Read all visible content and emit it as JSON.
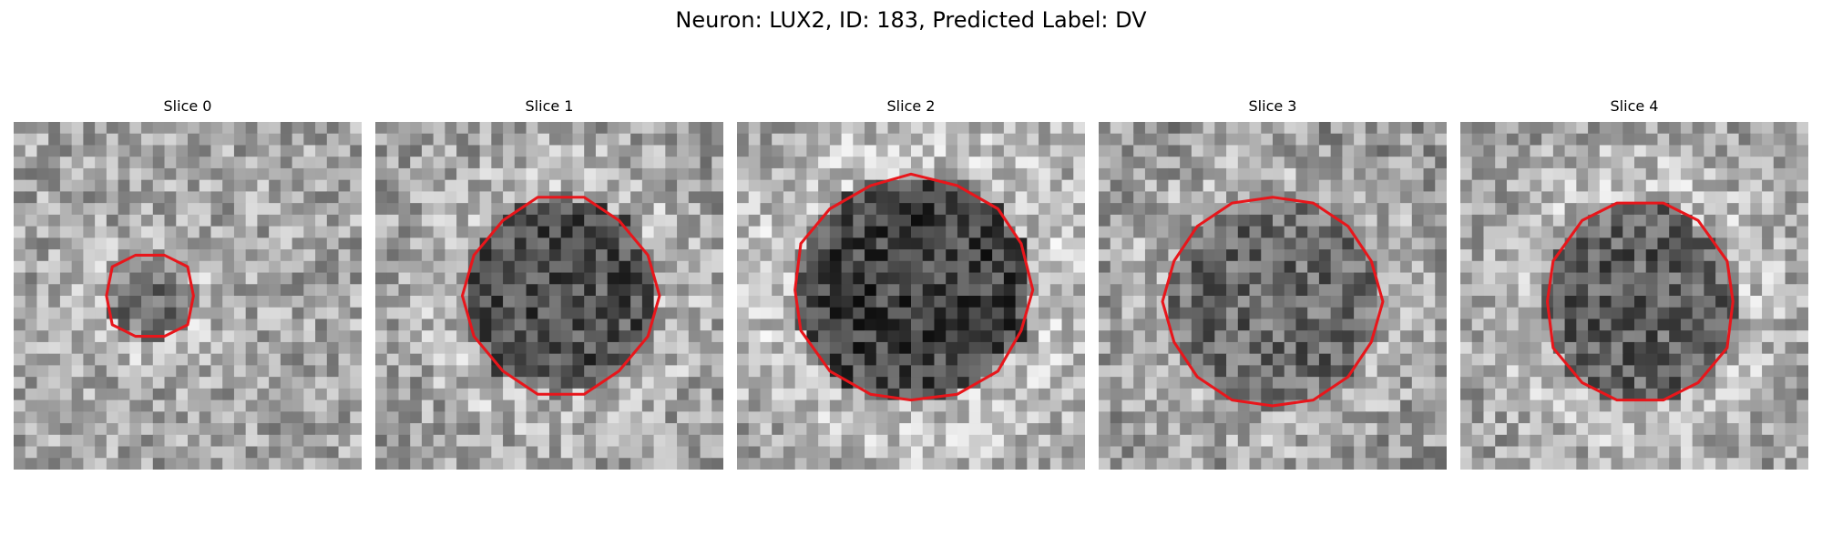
{
  "figure": {
    "title": "Neuron: LUX2, ID: 183, Predicted Label: DV"
  },
  "slices": [
    {
      "label": "Slice 0"
    },
    {
      "label": "Slice 1"
    },
    {
      "label": "Slice 2"
    },
    {
      "label": "Slice 3"
    },
    {
      "label": "Slice 4"
    }
  ],
  "colors": {
    "contour": "#e8161b",
    "background": "#ffffff"
  }
}
